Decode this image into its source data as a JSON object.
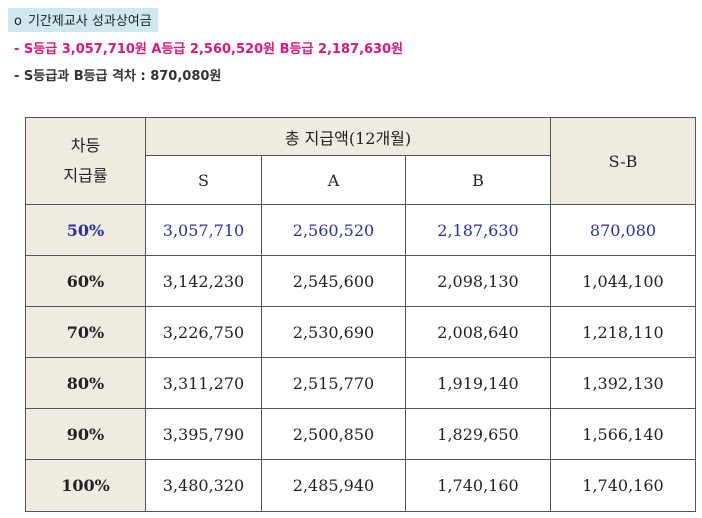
{
  "heading": {
    "bullet": "o",
    "title": "기간제교사 성과상여금"
  },
  "summary": {
    "amounts_line": "- S등급 3,057,710원 A등급 2,560,520원 B등급 2,187,630원",
    "gap_line": "- S등급과 B등급 격차 : 870,080원"
  },
  "table": {
    "corner_label_line1": "차등",
    "corner_label_line2": "지급률",
    "group_header": "총 지급액(12개월)",
    "col_s": "S",
    "col_a": "A",
    "col_b": "B",
    "col_diff": "S-B",
    "rows": [
      {
        "rate": "50%",
        "s": "3,057,710",
        "a": "2,560,520",
        "b": "2,187,630",
        "diff": "870,080"
      },
      {
        "rate": "60%",
        "s": "3,142,230",
        "a": "2,545,600",
        "b": "2,098,130",
        "diff": "1,044,100"
      },
      {
        "rate": "70%",
        "s": "3,226,750",
        "a": "2,530,690",
        "b": "2,008,640",
        "diff": "1,218,110"
      },
      {
        "rate": "80%",
        "s": "3,311,270",
        "a": "2,515,770",
        "b": "1,919,140",
        "diff": "1,392,130"
      },
      {
        "rate": "90%",
        "s": "3,395,790",
        "a": "2,500,850",
        "b": "1,829,650",
        "diff": "1,566,140"
      },
      {
        "rate": "100%",
        "s": "3,480,320",
        "a": "2,485,940",
        "b": "1,740,160",
        "diff": "1,740,160"
      }
    ],
    "highlight_color": "#2a2fa8",
    "header_bg": "#efebe0"
  }
}
